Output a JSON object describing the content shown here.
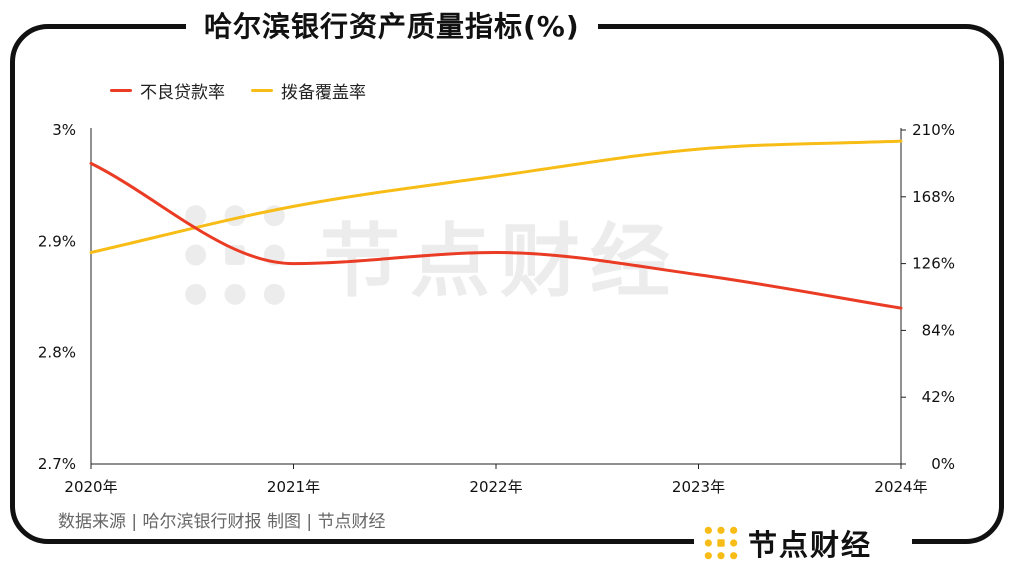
{
  "title": "哈尔滨银行资产质量指标(%)",
  "source": "数据来源 | 哈尔滨银行财报 制图 | 节点财经",
  "brand": "节点财经",
  "watermark": "节点财经",
  "colors": {
    "npl": "#ea3b24",
    "coverage": "#f7bd16",
    "axis": "#222222"
  },
  "chart_data": {
    "type": "line",
    "title": "哈尔滨银行资产质量指标(%)",
    "categories": [
      "2020年",
      "2021年",
      "2022年",
      "2023年",
      "2024年"
    ],
    "series": [
      {
        "name": "不良贷款率",
        "axis": "left",
        "values": [
          2.97,
          2.88,
          2.89,
          2.87,
          2.84
        ]
      },
      {
        "name": "拨备覆盖率",
        "axis": "right",
        "values": [
          133,
          162,
          181,
          198,
          203
        ]
      }
    ],
    "y_left": {
      "range": [
        2.7,
        3.0
      ],
      "ticks": [
        "3%",
        "2.9%",
        "2.8%",
        "2.7%"
      ],
      "tick_values": [
        3.0,
        2.9,
        2.8,
        2.7
      ]
    },
    "y_right": {
      "range": [
        0,
        210
      ],
      "ticks": [
        "210%",
        "168%",
        "126%",
        "84%",
        "42%",
        "0%"
      ],
      "tick_values": [
        210,
        168,
        126,
        84,
        42,
        0
      ]
    },
    "legend": "top-left",
    "grid": false
  }
}
